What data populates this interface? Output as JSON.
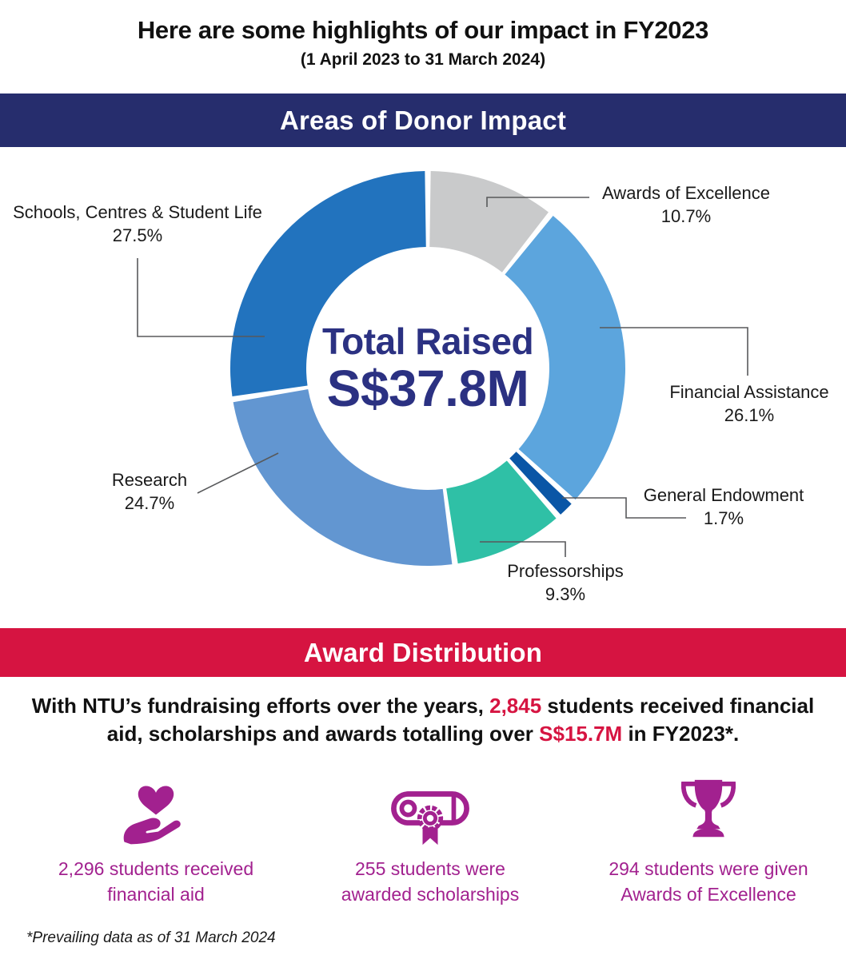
{
  "header": {
    "title": "Here are some highlights of our impact in FY2023",
    "subtitle": "(1 April 2023 to 31 March 2024)"
  },
  "donor_impact": {
    "banner": "Areas of Donor Impact"
  },
  "chart_data": {
    "type": "pie",
    "variant": "donut",
    "title": "Areas of Donor Impact",
    "center_label": "Total Raised",
    "center_value": "S$37.8M",
    "legend_position": "callout-labels",
    "start_angle_deg": 0,
    "direction": "clockwise",
    "segments": [
      {
        "label": "Awards of Excellence",
        "value": 10.7,
        "pct_label": "10.7%",
        "color": "#c9cacb"
      },
      {
        "label": "Financial Assistance",
        "value": 26.1,
        "pct_label": "26.1%",
        "color": "#5ca5dd"
      },
      {
        "label": "General Endowment",
        "value": 1.7,
        "pct_label": "1.7%",
        "color": "#0a56a6"
      },
      {
        "label": "Professorships",
        "value": 9.3,
        "pct_label": "9.3%",
        "color": "#2fc0a6"
      },
      {
        "label": "Research",
        "value": 24.7,
        "pct_label": "24.7%",
        "color": "#6296d1"
      },
      {
        "label": "Schools, Centres & Student Life",
        "value": 27.5,
        "pct_label": "27.5%",
        "color": "#2273be"
      }
    ]
  },
  "award_distribution": {
    "banner": "Award Distribution",
    "summary": {
      "text_before": "With NTU’s fundraising efforts over the years, ",
      "students_total": "2,845",
      "text_middle": " students received financial aid, scholarships and awards totalling over ",
      "amount_total": "S$15.7M",
      "text_after": " in FY2023*."
    },
    "stats": [
      {
        "icon": "heart-in-hand-icon",
        "caption": "2,296 students received financial aid"
      },
      {
        "icon": "scholarship-scroll-icon",
        "caption": "255 students were awarded scholarships"
      },
      {
        "icon": "trophy-icon",
        "caption": "294 students were given Awards of Excellence"
      }
    ],
    "footnote": "*Prevailing data as of 31 March 2024"
  },
  "colors": {
    "navy_banner": "#262d6d",
    "red_banner": "#d61441",
    "magenta": "#a2218f",
    "center_text_navy": "#2b3182",
    "connector_gray": "#58595b"
  }
}
